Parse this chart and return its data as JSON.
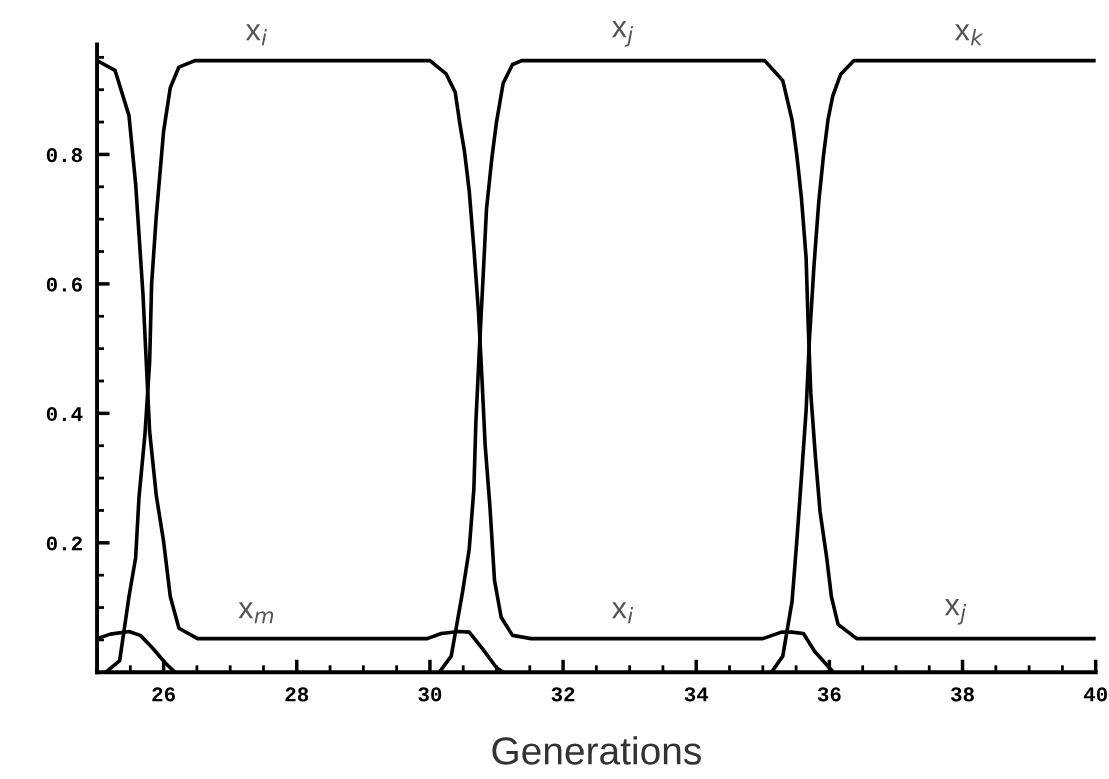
{
  "chart_data": {
    "type": "line",
    "xlabel": "Generations",
    "xlim": [
      25,
      40
    ],
    "ylim": [
      0,
      0.97
    ],
    "xticks": [
      26,
      28,
      30,
      32,
      34,
      36,
      38,
      40
    ],
    "yticks": [
      {
        "value": 0.2,
        "label": "0.2"
      },
      {
        "value": 0.4,
        "label": "0.4"
      },
      {
        "value": 0.6,
        "label": "0.6"
      },
      {
        "value": 0.8,
        "label": "0.8"
      }
    ],
    "grid": false,
    "marker": "none",
    "line_style": "solid",
    "series": [
      {
        "color": "#000000",
        "x": [
          25.0,
          25.27,
          25.48,
          25.58,
          25.69,
          25.79,
          25.89,
          26.0,
          26.1,
          26.23,
          26.51,
          29.96,
          30.17,
          30.44,
          30.59,
          30.8,
          31.0,
          31.1
        ],
        "values": [
          0.945,
          0.93,
          0.86,
          0.754,
          0.584,
          0.372,
          0.273,
          0.202,
          0.117,
          0.068,
          0.052,
          0.052,
          0.06,
          0.063,
          0.062,
          0.035,
          0.007,
          0
        ]
      },
      {
        "color": "#000000",
        "x": [
          25.13,
          25.34,
          25.48,
          25.58,
          25.63,
          25.72,
          25.79,
          25.82,
          25.89,
          26.0,
          26.1,
          26.23,
          26.47,
          30.0,
          30.24,
          30.38,
          30.45,
          30.52,
          30.59,
          30.66,
          30.73,
          30.78,
          30.83,
          30.9,
          30.97,
          31.07,
          31.24,
          31.52,
          35.0,
          35.28,
          35.44,
          35.61,
          35.78,
          36.06
        ],
        "values": [
          0,
          0.018,
          0.117,
          0.177,
          0.27,
          0.368,
          0.479,
          0.6,
          0.705,
          0.836,
          0.903,
          0.935,
          0.945,
          0.945,
          0.925,
          0.896,
          0.847,
          0.804,
          0.744,
          0.655,
          0.556,
          0.457,
          0.35,
          0.258,
          0.142,
          0.085,
          0.057,
          0.052,
          0.052,
          0.062,
          0.062,
          0.06,
          0.032,
          0
        ]
      },
      {
        "color": "#000000",
        "x": [
          30.14,
          30.32,
          30.49,
          30.59,
          30.66,
          30.69,
          30.74,
          30.8,
          30.85,
          30.93,
          31.0,
          31.1,
          31.24,
          31.38,
          35.03,
          35.3,
          35.44,
          35.51,
          35.58,
          35.65,
          35.68,
          35.72,
          35.79,
          35.86,
          35.96,
          36.03,
          36.13,
          36.41,
          40.0
        ],
        "values": [
          0,
          0.025,
          0.124,
          0.19,
          0.283,
          0.386,
          0.493,
          0.613,
          0.716,
          0.794,
          0.85,
          0.91,
          0.939,
          0.945,
          0.945,
          0.914,
          0.853,
          0.8,
          0.733,
          0.641,
          0.542,
          0.432,
          0.333,
          0.248,
          0.177,
          0.117,
          0.074,
          0.052,
          0.052
        ]
      },
      {
        "color": "#000000",
        "x": [
          35.13,
          35.3,
          35.44,
          35.51,
          35.58,
          35.65,
          35.7,
          35.77,
          35.84,
          35.91,
          35.98,
          36.05,
          36.17,
          36.37,
          40.0
        ],
        "values": [
          0,
          0.025,
          0.11,
          0.202,
          0.301,
          0.404,
          0.514,
          0.63,
          0.726,
          0.797,
          0.854,
          0.89,
          0.924,
          0.945,
          0.945
        ]
      },
      {
        "color": "#000000",
        "x": [
          25.0,
          25.2,
          25.48,
          25.65,
          25.82,
          26.03,
          26.17
        ],
        "values": [
          0.052,
          0.059,
          0.063,
          0.057,
          0.039,
          0.014,
          0
        ]
      }
    ],
    "annotations": [
      {
        "text": "x$_{i}$",
        "x": 27.4,
        "y": 0.945
      },
      {
        "text": "x$_{j}$",
        "x": 32.9,
        "y": 0.945
      },
      {
        "text": "x$_{k}$",
        "x": 38.1,
        "y": 0.945
      },
      {
        "text": "x$_{m}$",
        "x": 27.4,
        "y": 0.052
      },
      {
        "text": "x$_{i}$",
        "x": 32.9,
        "y": 0.052
      },
      {
        "text": "x$_{j}$",
        "x": 37.9,
        "y": 0.052
      }
    ]
  }
}
